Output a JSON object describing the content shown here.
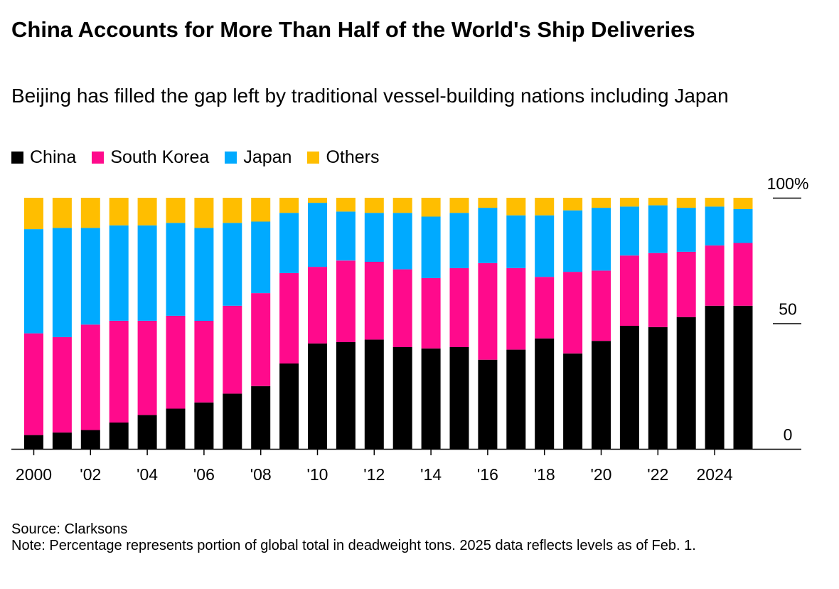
{
  "chart_data": {
    "type": "bar",
    "stacked": true,
    "title": "China Accounts for More Than Half of the World's Ship Deliveries",
    "subtitle": "Beijing has filled the gap left by traditional vessel-building nations including Japan",
    "x": [
      2000,
      2001,
      2002,
      2003,
      2004,
      2005,
      2006,
      2007,
      2008,
      2009,
      2010,
      2011,
      2012,
      2013,
      2014,
      2015,
      2016,
      2017,
      2018,
      2019,
      2020,
      2021,
      2022,
      2023,
      2024,
      2025
    ],
    "x_tick_labels": [
      "2000",
      "'02",
      "'04",
      "'06",
      "'08",
      "'10",
      "'12",
      "'14",
      "'16",
      "'18",
      "'20",
      "'22",
      "2024"
    ],
    "x_tick_values": [
      2000,
      2002,
      2004,
      2006,
      2008,
      2010,
      2012,
      2014,
      2016,
      2018,
      2020,
      2022,
      2024
    ],
    "y_tick_labels": [
      "100%",
      "50",
      "0"
    ],
    "y_tick_values": [
      100,
      50,
      0
    ],
    "ylim": [
      0,
      100
    ],
    "legend_position": "top-left",
    "series": [
      {
        "name": "China",
        "color": "#000000",
        "values": [
          5.5,
          6.5,
          7.5,
          10.5,
          13.5,
          16,
          18.5,
          22,
          25,
          34,
          42,
          42.5,
          43.5,
          40.5,
          40,
          40.5,
          35.5,
          39.5,
          44,
          38,
          43,
          49,
          48.5,
          52.5,
          57,
          57
        ]
      },
      {
        "name": "South Korea",
        "color": "#ff0a8c",
        "values": [
          40.5,
          38,
          42,
          40.5,
          37.5,
          37,
          32.5,
          35,
          37,
          36,
          30.5,
          32.5,
          31,
          31,
          28,
          31.5,
          38.5,
          32.5,
          24.5,
          32.5,
          28,
          28,
          29.5,
          26,
          24,
          25
        ]
      },
      {
        "name": "Japan",
        "color": "#00aaff",
        "values": [
          41.5,
          43.5,
          38.5,
          38,
          38,
          37,
          37,
          33,
          28.5,
          24,
          25.5,
          19.5,
          19.5,
          22.5,
          24.5,
          22,
          22,
          21,
          24.5,
          24.5,
          25,
          19.5,
          19,
          17.5,
          15.5,
          13.5
        ]
      },
      {
        "name": "Others",
        "color": "#ffbe00",
        "values": [
          12.5,
          12,
          12,
          11,
          11,
          10,
          12,
          10,
          9.5,
          6,
          2,
          5.5,
          6,
          6,
          7.5,
          6,
          4,
          7,
          7,
          5,
          4,
          3.5,
          3,
          4,
          3.5,
          4.5
        ]
      }
    ],
    "grid": false
  },
  "footer": {
    "source": "Source: Clarksons",
    "note": "Note: Percentage represents portion of global total in deadweight tons. 2025 data reflects levels as of Feb. 1."
  }
}
